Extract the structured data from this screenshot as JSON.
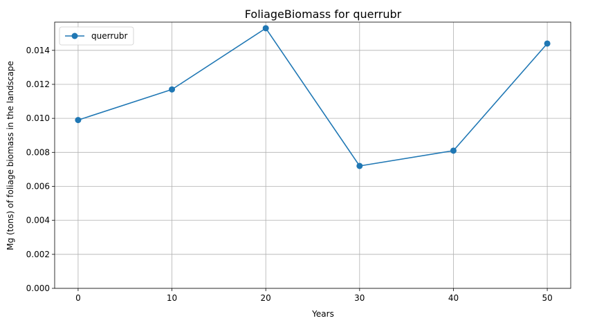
{
  "chart_data": {
    "type": "line",
    "title": "FoliageBiomass for querrubr",
    "xlabel": "Years",
    "ylabel": "Mg (tons) of foliage biomass in the landscape",
    "xlim": [
      -2.5,
      52.5
    ],
    "ylim": [
      0,
      0.01566
    ],
    "xticks": [
      0,
      10,
      20,
      30,
      40,
      50
    ],
    "xtick_labels": [
      "0",
      "10",
      "20",
      "30",
      "40",
      "50"
    ],
    "yticks": [
      0,
      0.002,
      0.004,
      0.006,
      0.008,
      0.01,
      0.012,
      0.014
    ],
    "ytick_labels": [
      "0.000",
      "0.002",
      "0.004",
      "0.006",
      "0.008",
      "0.010",
      "0.012",
      "0.014"
    ],
    "grid": true,
    "legend_position": "top-left",
    "series": [
      {
        "name": "querrubr",
        "color": "#1f77b4",
        "marker": "circle",
        "x": [
          0,
          10,
          20,
          30,
          40,
          50
        ],
        "y": [
          0.0099,
          0.0117,
          0.0153,
          0.0072,
          0.0081,
          0.0144
        ]
      }
    ]
  }
}
